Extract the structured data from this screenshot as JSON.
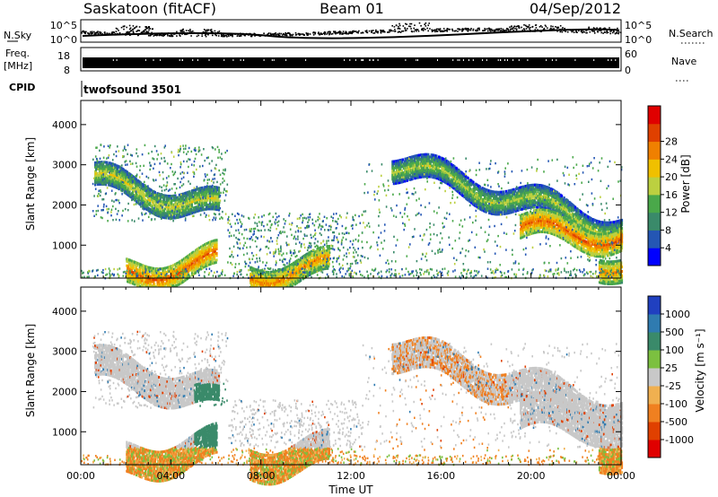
{
  "header": {
    "station": "Saskatoon (fitACF)",
    "beam": "Beam 01",
    "date": "04/Sep/2012"
  },
  "chart_data": [
    {
      "type": "scatter",
      "panel": "noise",
      "left_label": "N.Sky",
      "right_label": "N.Search",
      "left_ticks": [
        "10^5",
        "10^0"
      ],
      "right_ticks": [
        "10^5",
        "10^0"
      ],
      "note": "dense scatter of sky noise; heavier near 02:00-03:00, 06:00, 14:00-15:00, 19:00-21:00"
    },
    {
      "type": "area",
      "panel": "frequency",
      "left_label_lines": [
        "Freq.",
        "[MHz]"
      ],
      "right_label": "Nave",
      "left_ticks": [
        "18",
        "8"
      ],
      "right_ticks": [
        "60",
        "0"
      ],
      "cpid_label": "CPID",
      "cpid_value": "twofsound 3501"
    },
    {
      "type": "heatmap",
      "panel": "power",
      "ylabel": "Slant Range [km]",
      "yticks": [
        1000,
        2000,
        3000,
        4000
      ],
      "ylim": [
        180,
        4600
      ],
      "colorbar_label": "Power [dB]",
      "colorbar_ticks": [
        4,
        8,
        12,
        16,
        20,
        24,
        28
      ],
      "colorbar_colors": [
        "#0000ff",
        "#2456b4",
        "#3a8a6a",
        "#4aa84a",
        "#bcd040",
        "#f0c000",
        "#f08000",
        "#e04000",
        "#e00000"
      ],
      "bands": [
        {
          "t0": 0.6,
          "t1": 6.1,
          "r0": 2600,
          "r1": 1900,
          "level": 18
        },
        {
          "t0": 2.0,
          "t1": 6.0,
          "r0": 250,
          "r1": 600,
          "level": 26
        },
        {
          "t0": 7.5,
          "t1": 11.0,
          "r0": 250,
          "r1": 450,
          "level": 24
        },
        {
          "t0": 13.8,
          "t1": 24.0,
          "r0": 3000,
          "r1": 1400,
          "level": 16
        },
        {
          "t0": 19.5,
          "t1": 24.0,
          "r0": 1400,
          "r1": 1200,
          "level": 26
        },
        {
          "t0": 23.0,
          "t1": 24.0,
          "r0": 600,
          "r1": 400,
          "level": 24
        }
      ]
    },
    {
      "type": "heatmap",
      "panel": "velocity",
      "ylabel": "Slant Range [km]",
      "yticks": [
        1000,
        2000,
        3000,
        4000
      ],
      "ylim": [
        180,
        4600
      ],
      "xlabel": "Time UT",
      "xticks": [
        "00:00",
        "04:00",
        "08:00",
        "12:00",
        "16:00",
        "20:00",
        "00:00"
      ],
      "colorbar_label": "Velocity [m s⁻¹]",
      "colorbar_ticks": [
        "1000",
        "500",
        "100",
        "25",
        "-25",
        "-100",
        "-500",
        "-1000"
      ],
      "colorbar_colors": [
        "#2040c0",
        "#2f7bb0",
        "#3a8a6a",
        "#7cc040",
        "#c8c8c8",
        "#f0b050",
        "#f08020",
        "#e04000",
        "#e00000"
      ]
    }
  ]
}
